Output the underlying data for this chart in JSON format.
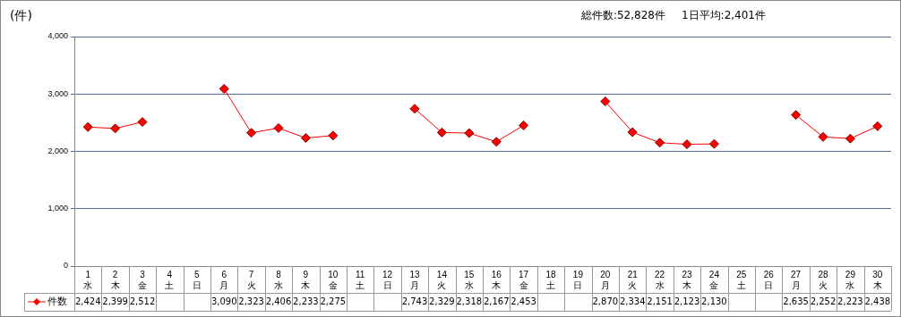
{
  "chart_data": {
    "type": "line",
    "ylabel": "(件)",
    "annotations": [
      "総件数:52,828件",
      "1日平均:2,401件"
    ],
    "categories": [
      "1\n水",
      "2\n木",
      "3\n金",
      "4\n土",
      "5\n日",
      "6\n月",
      "7\n火",
      "8\n水",
      "9\n木",
      "10\n金",
      "11\n土",
      "12\n日",
      "13\n月",
      "14\n火",
      "15\n水",
      "16\n木",
      "17\n金",
      "18\n土",
      "19\n日",
      "20\n月",
      "21\n火",
      "22\n水",
      "23\n木",
      "24\n金",
      "25\n土",
      "26\n日",
      "27\n月",
      "28\n火",
      "29\n水",
      "30\n木"
    ],
    "series": [
      {
        "name": "件数",
        "color": "#ff0000",
        "values": [
          2424,
          2399,
          2512,
          null,
          null,
          3090,
          2323,
          2406,
          2233,
          2275,
          null,
          null,
          2743,
          2329,
          2318,
          2167,
          2453,
          null,
          null,
          2870,
          2334,
          2151,
          2123,
          2130,
          null,
          null,
          2635,
          2252,
          2223,
          2438
        ],
        "value_labels": [
          "2,424",
          "2,399",
          "2,512",
          null,
          null,
          "3,090",
          "2,323",
          "2,406",
          "2,233",
          "2,275",
          null,
          null,
          "2,743",
          "2,329",
          "2,318",
          "2,167",
          "2,453",
          null,
          null,
          "2,870",
          "2,334",
          "2,151",
          "2,123",
          "2,130",
          null,
          null,
          "2,635",
          "2,252",
          "2,223",
          "2,438"
        ]
      }
    ],
    "ylim": [
      0,
      4000
    ],
    "yticks": [
      {
        "value": 0,
        "label": "0"
      },
      {
        "value": 1000,
        "label": "1,000"
      },
      {
        "value": 2000,
        "label": "2,000"
      },
      {
        "value": 3000,
        "label": "3,000"
      },
      {
        "value": 4000,
        "label": "4,000"
      }
    ],
    "grid": "y",
    "marker": "diamond",
    "line_style": "solid",
    "legend": "bottom left"
  }
}
